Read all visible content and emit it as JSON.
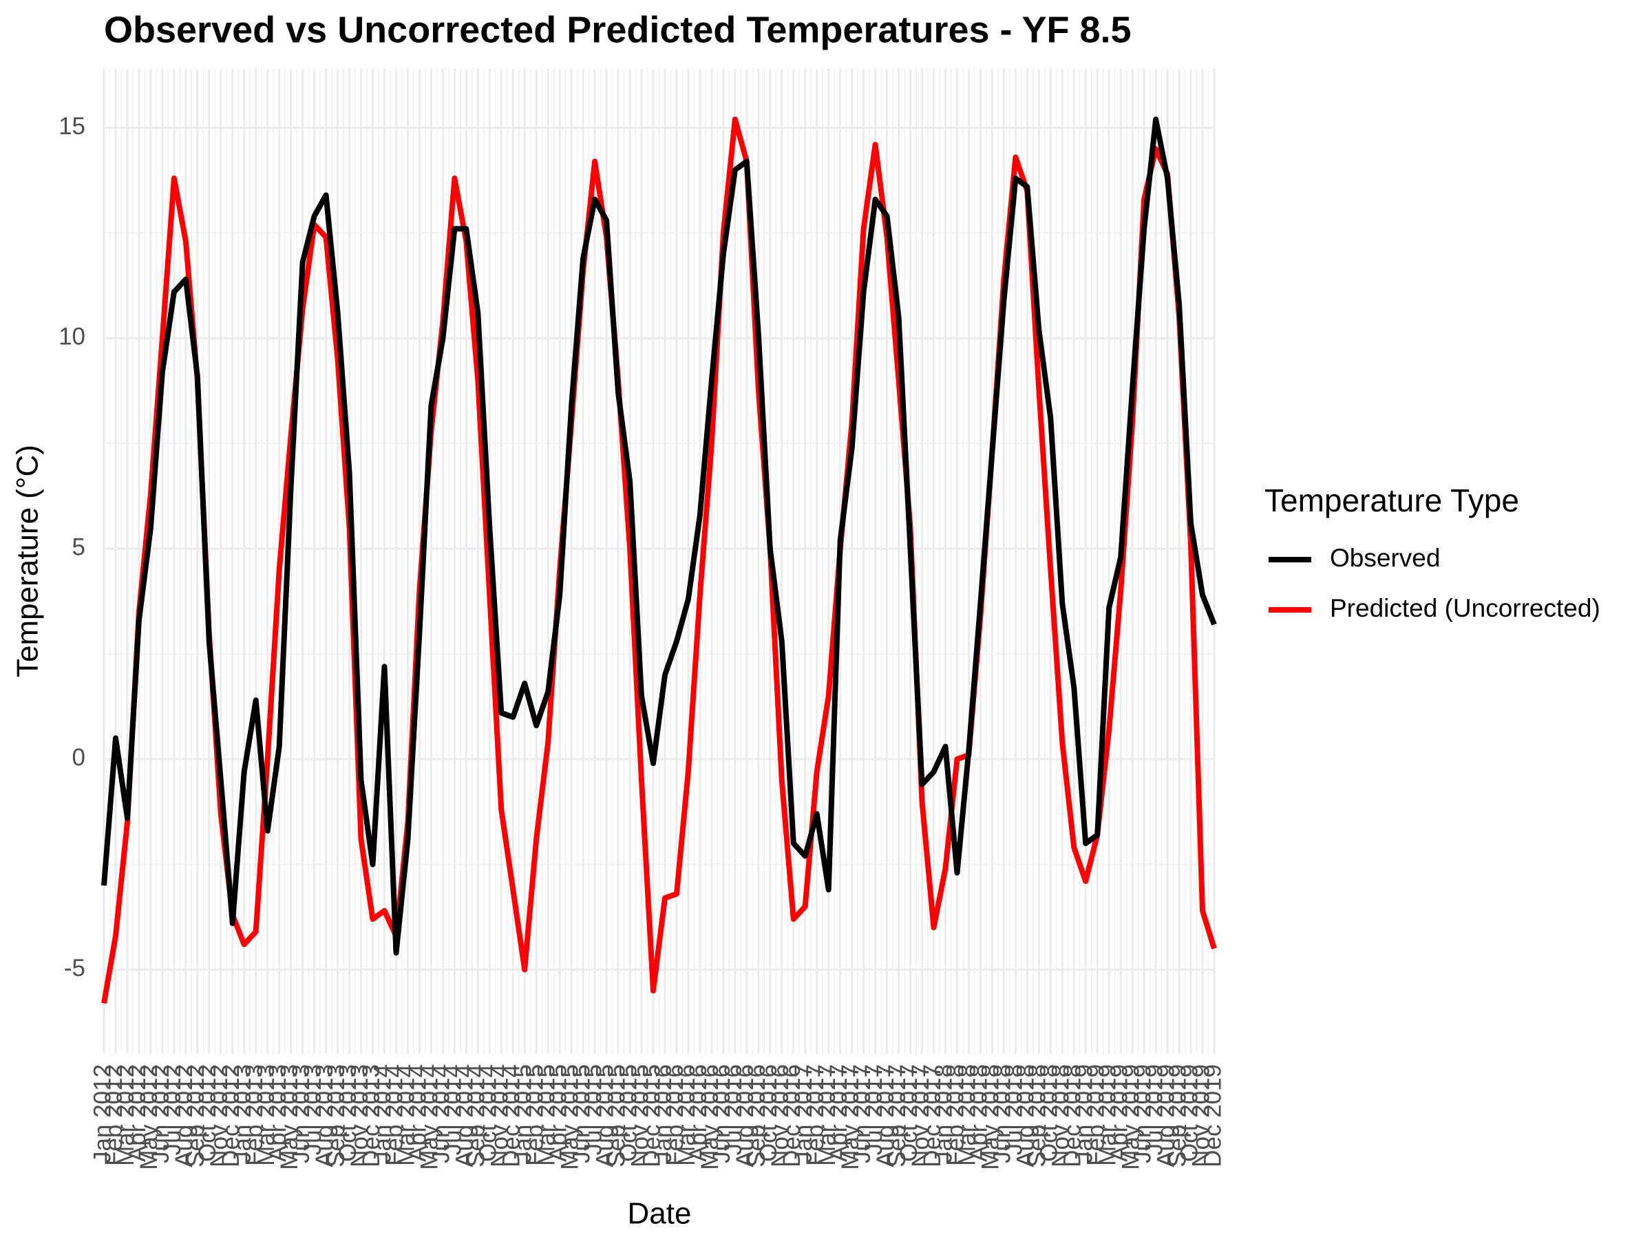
{
  "chart_data": {
    "type": "line",
    "title": "Observed vs Uncorrected Predicted Temperatures - YF 8.5",
    "x_label": "Date",
    "y_label": "Temperature (°C)",
    "legend_title": "Temperature Type",
    "legend": "right",
    "grid": true,
    "categories": [
      "Jan 2012",
      "Feb 2012",
      "Mar 2012",
      "Apr 2012",
      "May 2012",
      "Jun 2012",
      "Jul 2012",
      "Aug 2012",
      "Sep 2012",
      "Oct 2012",
      "Nov 2012",
      "Dec 2012",
      "Jan 2013",
      "Feb 2013",
      "Mar 2013",
      "Apr 2013",
      "May 2013",
      "Jun 2013",
      "Jul 2013",
      "Aug 2013",
      "Sep 2013",
      "Oct 2013",
      "Nov 2013",
      "Dec 2013",
      "Jan 2014",
      "Feb 2014",
      "Mar 2014",
      "Apr 2014",
      "May 2014",
      "Jun 2014",
      "Jul 2014",
      "Aug 2014",
      "Sep 2014",
      "Oct 2014",
      "Nov 2014",
      "Dec 2014",
      "Jan 2015",
      "Feb 2015",
      "Mar 2015",
      "Apr 2015",
      "May 2015",
      "Jun 2015",
      "Jul 2015",
      "Aug 2015",
      "Sep 2015",
      "Oct 2015",
      "Nov 2015",
      "Dec 2015",
      "Jan 2016",
      "Feb 2016",
      "Mar 2016",
      "Apr 2016",
      "May 2016",
      "Jun 2016",
      "Jul 2016",
      "Aug 2016",
      "Sep 2016",
      "Oct 2016",
      "Nov 2016",
      "Dec 2016",
      "Jan 2017",
      "Feb 2017",
      "Mar 2017",
      "Apr 2017",
      "May 2017",
      "Jun 2017",
      "Jul 2017",
      "Aug 2017",
      "Sep 2017",
      "Oct 2017",
      "Nov 2017",
      "Dec 2017",
      "Jan 2018",
      "Feb 2018",
      "Mar 2018",
      "Apr 2018",
      "May 2018",
      "Jun 2018",
      "Jul 2018",
      "Aug 2018",
      "Sep 2018",
      "Oct 2018",
      "Nov 2018",
      "Dec 2018",
      "Jan 2019",
      "Feb 2019",
      "Mar 2019",
      "Apr 2019",
      "May 2019",
      "Jun 2019",
      "Jul 2019",
      "Aug 2019",
      "Sep 2019",
      "Oct 2019",
      "Nov 2019",
      "Dec 2019"
    ],
    "series": [
      {
        "name": "Observed",
        "color": "#000000",
        "values": [
          -3.0,
          0.5,
          -1.4,
          3.3,
          5.5,
          9.2,
          11.1,
          11.4,
          9.1,
          2.8,
          -0.5,
          -3.9,
          -0.3,
          1.4,
          -1.7,
          0.3,
          6.5,
          11.8,
          12.9,
          13.4,
          10.6,
          6.8,
          -0.5,
          -2.5,
          2.2,
          -4.6,
          -1.9,
          3.0,
          8.4,
          10.0,
          12.6,
          12.6,
          10.6,
          5.5,
          1.1,
          1.0,
          1.8,
          0.8,
          1.6,
          3.9,
          8.4,
          11.9,
          13.3,
          12.8,
          8.7,
          6.6,
          1.5,
          -0.1,
          2.0,
          2.8,
          3.8,
          5.8,
          9.0,
          12.0,
          14.0,
          14.2,
          10.1,
          5.0,
          2.8,
          -2.0,
          -2.3,
          -1.3,
          -3.1,
          5.2,
          7.4,
          11.1,
          13.3,
          12.9,
          10.5,
          5.0,
          -0.6,
          -0.3,
          0.3,
          -2.7,
          0.2,
          3.7,
          7.3,
          10.9,
          13.8,
          13.6,
          10.2,
          8.1,
          3.7,
          1.7,
          -2.0,
          -1.8,
          3.6,
          4.8,
          8.8,
          12.6,
          15.2,
          13.8,
          10.8,
          5.6,
          3.9,
          3.2
        ]
      },
      {
        "name": "Predicted (Uncorrected)",
        "color": "#ff0000",
        "values": [
          -5.8,
          -4.2,
          -1.5,
          3.5,
          6.3,
          10.0,
          13.8,
          12.3,
          9.0,
          3.0,
          -1.3,
          -3.7,
          -4.4,
          -4.1,
          0.0,
          4.5,
          7.7,
          10.7,
          12.7,
          12.4,
          9.5,
          5.5,
          -1.9,
          -3.8,
          -3.6,
          -4.2,
          -1.5,
          4.0,
          7.8,
          10.4,
          13.8,
          12.3,
          9.0,
          3.9,
          -1.2,
          -3.1,
          -5.0,
          -1.9,
          0.4,
          4.5,
          8.0,
          11.6,
          14.2,
          12.4,
          9.0,
          5.0,
          -0.5,
          -5.5,
          -3.3,
          -3.2,
          -0.3,
          3.9,
          7.5,
          12.5,
          15.2,
          14.2,
          8.8,
          5.0,
          -0.5,
          -3.8,
          -3.5,
          -0.3,
          1.5,
          5.0,
          8.0,
          12.6,
          14.6,
          12.4,
          9.0,
          5.5,
          -1.0,
          -4.0,
          -2.6,
          0.0,
          0.1,
          3.4,
          7.3,
          11.4,
          14.3,
          13.5,
          8.8,
          4.5,
          0.4,
          -2.1,
          -2.9,
          -1.8,
          0.7,
          4.0,
          8.0,
          13.3,
          14.5,
          13.9,
          10.5,
          5.1,
          -3.6,
          -4.5
        ]
      }
    ],
    "ylim": [
      -7,
      16.4
    ],
    "yticks": [
      -5,
      0,
      5,
      10,
      15
    ]
  }
}
